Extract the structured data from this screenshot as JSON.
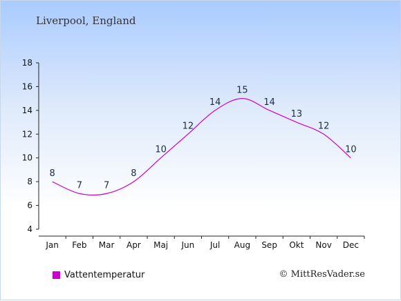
{
  "header": {
    "location": "Liverpool, England"
  },
  "legend": {
    "label": "Vattentemperatur",
    "color": "#cc00cc"
  },
  "credit": "© MittResVader.se",
  "chart_data": {
    "type": "line",
    "categories": [
      "Jan",
      "Feb",
      "Mar",
      "Apr",
      "Maj",
      "Jun",
      "Jul",
      "Aug",
      "Sep",
      "Okt",
      "Nov",
      "Dec"
    ],
    "series": [
      {
        "name": "Vattentemperatur",
        "values": [
          8,
          7,
          7,
          8,
          10,
          12,
          14,
          15,
          14,
          13,
          12,
          10
        ],
        "color": "#cc00cc"
      }
    ],
    "data_labels": [
      "8",
      "7",
      "7",
      "8",
      "10",
      "12",
      "14",
      "15",
      "14",
      "13",
      "12",
      "10"
    ],
    "yticks": [
      4,
      6,
      8,
      10,
      12,
      14,
      16,
      18
    ],
    "ylim": [
      4,
      18
    ],
    "grid": false,
    "legend_position": "bottom-left"
  }
}
